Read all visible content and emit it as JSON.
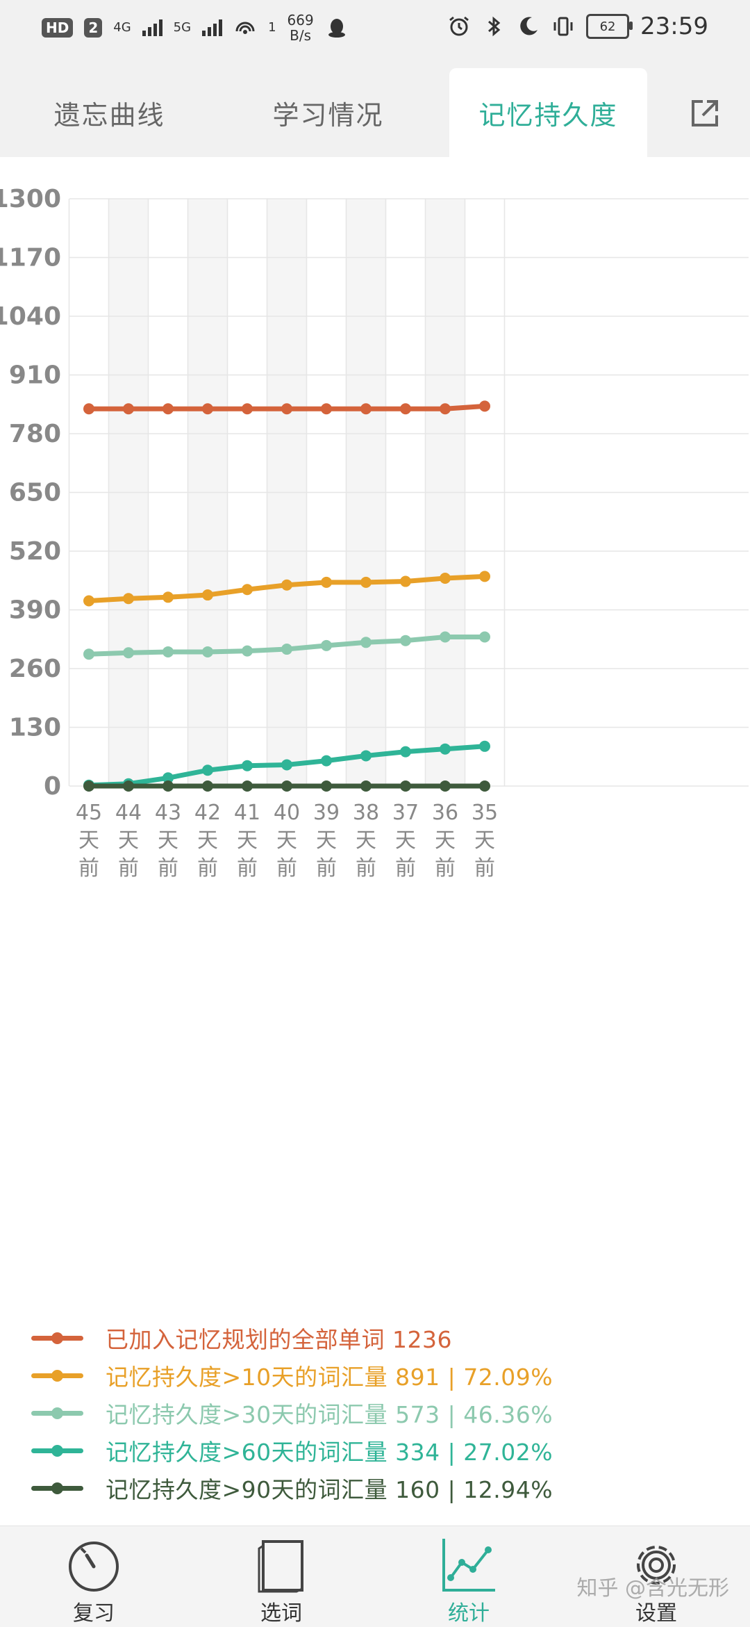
{
  "status_bar": {
    "hd_badge": "HD",
    "sim_badge": "2",
    "net1": "4G",
    "net2": "5G",
    "hotspot_count": "1",
    "speed_value": "669",
    "speed_unit": "B/s",
    "battery": "62",
    "time": "23:59"
  },
  "tabs": [
    {
      "label": "遗忘曲线",
      "active": false
    },
    {
      "label": "学习情况",
      "active": false
    },
    {
      "label": "记忆持久度",
      "active": true
    }
  ],
  "chart_data": {
    "type": "line",
    "ylim": [
      0,
      1300
    ],
    "yticks": [
      "1300",
      "1170",
      "1040",
      "910",
      "780",
      "650",
      "520",
      "390",
      "260",
      "130",
      "0"
    ],
    "categories": [
      "45天前",
      "44天前",
      "43天前",
      "42天前",
      "41天前",
      "40天前",
      "39天前",
      "38天前",
      "37天前",
      "36天前",
      "35天前"
    ],
    "grid": true,
    "legend_position": "bottom",
    "series": [
      {
        "name": "已加入记忆规划的全部单词 1236",
        "color": "#d4633b",
        "values": [
          835,
          835,
          835,
          835,
          835,
          835,
          835,
          835,
          835,
          835,
          841
        ]
      },
      {
        "name": "记忆持久度>10天的词汇量 891 | 72.09%",
        "color": "#e8a028",
        "values": [
          410,
          415,
          418,
          423,
          435,
          445,
          451,
          451,
          453,
          460,
          464
        ]
      },
      {
        "name": "记忆持久度>30天的词汇量 573 | 46.36%",
        "color": "#8cc9ae",
        "values": [
          292,
          295,
          297,
          297,
          299,
          303,
          311,
          318,
          322,
          330,
          330
        ]
      },
      {
        "name": "记忆持久度>60天的词汇量 334 | 27.02%",
        "color": "#2fb497",
        "values": [
          2,
          5,
          18,
          35,
          45,
          47,
          56,
          67,
          76,
          82,
          88
        ]
      },
      {
        "name": "记忆持久度>90天的词汇量 160 | 12.94%",
        "color": "#3e5a3c",
        "values": [
          0,
          0,
          0,
          0,
          0,
          0,
          0,
          0,
          0,
          0,
          0
        ]
      }
    ]
  },
  "bottom_nav": [
    {
      "label": "复习",
      "icon": "timer-icon",
      "active": false
    },
    {
      "label": "选词",
      "icon": "book-icon",
      "active": false
    },
    {
      "label": "统计",
      "icon": "chart-icon",
      "active": true
    },
    {
      "label": "设置",
      "icon": "gear-icon",
      "active": false
    }
  ],
  "watermark": "知乎 @含光无形"
}
